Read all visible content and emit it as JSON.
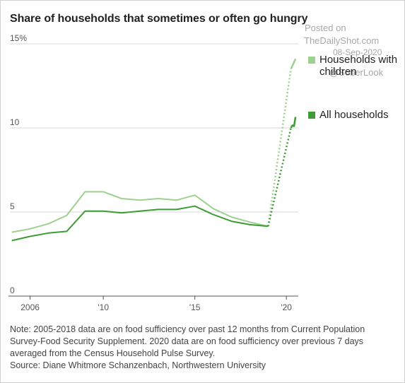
{
  "title": "Share of households that sometimes or often go hungry",
  "watermark": {
    "line1": "Posted on",
    "line2": "TheDailyShot.com",
    "line3": "08-Sep-2020",
    "line4": "@SoberLook"
  },
  "legend": [
    {
      "label": "Households with children",
      "color": "#9dd18f"
    },
    {
      "label": "All households",
      "color": "#3d9c35"
    }
  ],
  "note": {
    "line1": "Note: 2005-2018 data are on food sufficiency over past 12 months from Current Population",
    "line2": "Survey-Food Security Supplement. 2020 data are on food sufficiency over previous 7 days",
    "line3": "averaged from the Census Household Pulse Survey.",
    "line4": "Source: Diane Whitmore Schanzenbach, Northwestern University"
  },
  "chart_data": {
    "type": "line",
    "title": "Share of households that sometimes or often go hungry",
    "xlabel": "",
    "ylabel": "",
    "xlim": [
      2005.4,
      2020.7
    ],
    "ylim": [
      0,
      15
    ],
    "yticks": [
      {
        "value": 0,
        "label": "0"
      },
      {
        "value": 5,
        "label": "5"
      },
      {
        "value": 10,
        "label": "10"
      },
      {
        "value": 15,
        "label": "15%"
      }
    ],
    "xticks": [
      {
        "value": 2006,
        "label": "2006"
      },
      {
        "value": 2010,
        "label": "'10"
      },
      {
        "value": 2015,
        "label": "'15"
      },
      {
        "value": 2020,
        "label": "'20"
      }
    ],
    "grid": true,
    "legend_position": "right",
    "series": [
      {
        "name": "Households with children",
        "color": "#9dd18f",
        "x": [
          2005,
          2006,
          2007,
          2008,
          2009,
          2010,
          2011,
          2012,
          2013,
          2014,
          2015,
          2016,
          2017,
          2018,
          2019
        ],
        "values": [
          3.8,
          4.0,
          4.3,
          4.8,
          6.2,
          6.2,
          5.8,
          5.7,
          5.8,
          5.7,
          6.0,
          5.2,
          4.7,
          4.4,
          4.15
        ],
        "dotted_x": [
          2019,
          2020.25
        ],
        "dotted_values": [
          4.15,
          13.5
        ],
        "pulse_x": [
          2020.25,
          2020.5
        ],
        "pulse_values": [
          13.5,
          14.1
        ]
      },
      {
        "name": "All households",
        "color": "#3d9c35",
        "x": [
          2005,
          2006,
          2007,
          2008,
          2009,
          2010,
          2011,
          2012,
          2013,
          2014,
          2015,
          2016,
          2017,
          2018,
          2019
        ],
        "values": [
          3.3,
          3.55,
          3.75,
          3.85,
          5.05,
          5.05,
          4.95,
          5.05,
          5.15,
          5.15,
          5.35,
          4.85,
          4.45,
          4.25,
          4.15
        ],
        "dotted_x": [
          2019,
          2020.25
        ],
        "dotted_values": [
          4.15,
          10.0
        ],
        "pulse_x": [
          2020.25,
          2020.33,
          2020.42,
          2020.5
        ],
        "pulse_values": [
          10.0,
          10.15,
          10.1,
          10.65
        ]
      }
    ]
  }
}
